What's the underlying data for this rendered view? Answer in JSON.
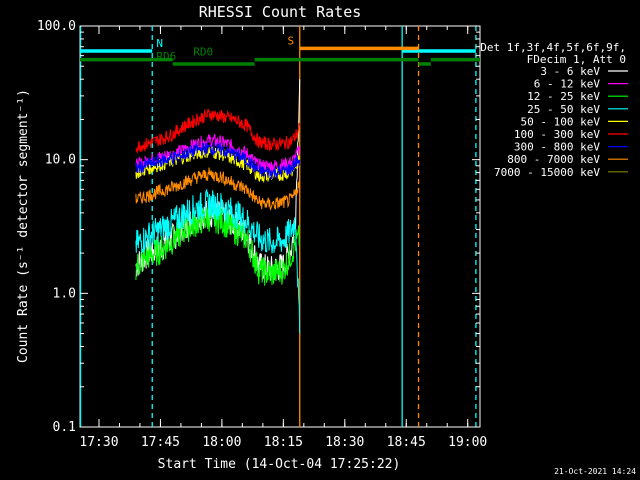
{
  "chart_data": {
    "type": "line",
    "title": "RHESSI Count Rates",
    "xlabel": "Start Time (14-Oct-04 17:25:22)",
    "ylabel": "Count Rate (s⁻¹ detector segment⁻¹)",
    "yscale": "log",
    "ylim": [
      0.1,
      100.0
    ],
    "xlim": [
      "17:25:22",
      "19:03:00"
    ],
    "x_ticks": [
      "17:30",
      "17:45",
      "18:00",
      "18:15",
      "18:30",
      "18:45",
      "19:00"
    ],
    "y_ticks": [
      "0.1",
      "1.0",
      "10.0",
      "100.0"
    ],
    "grid": false,
    "legend_position": "right",
    "legend_header": [
      "Det 1f,3f,4f,5f,6f,9f,",
      "FDecim 1, Att 0"
    ],
    "series": [
      {
        "name": "3 - 6 keV",
        "color": "#ffffff",
        "x": [
          "17:39",
          "17:42",
          "17:45",
          "17:48",
          "17:51",
          "17:54",
          "17:57",
          "18:00",
          "18:03",
          "18:06",
          "18:09",
          "18:12",
          "18:15",
          "18:17",
          "18:18",
          "18:19"
        ],
        "values": [
          1.6,
          2.0,
          2.2,
          2.6,
          3.2,
          3.8,
          4.0,
          3.8,
          3.3,
          2.8,
          1.6,
          1.5,
          1.6,
          2.2,
          4.0,
          40.0
        ]
      },
      {
        "name": "6 - 12 keV",
        "color": "#ff00ff",
        "x": [
          "17:39",
          "17:42",
          "17:45",
          "17:48",
          "17:51",
          "17:54",
          "17:57",
          "18:00",
          "18:03",
          "18:06",
          "18:09",
          "18:12",
          "18:15",
          "18:17",
          "18:18",
          "18:19"
        ],
        "values": [
          9.0,
          9.8,
          10.5,
          11.0,
          12.0,
          13.2,
          14.0,
          13.5,
          12.5,
          11.2,
          9.0,
          9.0,
          9.2,
          9.6,
          10.5,
          12.0
        ]
      },
      {
        "name": "12 - 25 keV",
        "color": "#00ff00",
        "x": [
          "17:39",
          "17:42",
          "17:45",
          "17:48",
          "17:51",
          "17:54",
          "17:57",
          "18:00",
          "18:03",
          "18:06",
          "18:09",
          "18:12",
          "18:15",
          "18:17",
          "18:18",
          "18:19"
        ],
        "values": [
          1.6,
          1.9,
          2.1,
          2.5,
          3.0,
          3.4,
          3.7,
          3.5,
          3.0,
          2.6,
          1.5,
          1.4,
          1.5,
          2.0,
          2.4,
          2.6
        ]
      },
      {
        "name": "25 - 50 keV",
        "color": "#00ffff",
        "x": [
          "17:39",
          "17:42",
          "17:45",
          "17:48",
          "17:51",
          "17:54",
          "17:57",
          "18:00",
          "18:03",
          "18:06",
          "18:09",
          "18:12",
          "18:15",
          "18:17",
          "18:18",
          "18:19"
        ],
        "values": [
          2.3,
          2.7,
          3.0,
          3.4,
          4.0,
          4.4,
          4.7,
          4.5,
          4.0,
          3.5,
          2.6,
          2.4,
          2.5,
          3.0,
          3.6,
          0.5
        ]
      },
      {
        "name": "50 - 100 keV",
        "color": "#ffff00",
        "x": [
          "17:39",
          "17:42",
          "17:45",
          "17:48",
          "17:51",
          "17:54",
          "17:57",
          "18:00",
          "18:03",
          "18:06",
          "18:09",
          "18:12",
          "18:15",
          "18:17",
          "18:18",
          "18:19"
        ],
        "values": [
          8.0,
          8.6,
          9.2,
          9.8,
          10.5,
          11.2,
          11.6,
          11.0,
          10.0,
          9.2,
          7.6,
          7.6,
          7.8,
          8.2,
          9.0,
          10.0
        ]
      },
      {
        "name": "100 - 300 keV",
        "color": "#ff0000",
        "x": [
          "17:39",
          "17:42",
          "17:45",
          "17:48",
          "17:51",
          "17:54",
          "17:57",
          "18:00",
          "18:03",
          "18:06",
          "18:09",
          "18:12",
          "18:15",
          "18:17",
          "18:18",
          "18:19"
        ],
        "values": [
          12.5,
          13.2,
          14.2,
          15.5,
          18.0,
          20.0,
          22.0,
          21.0,
          20.0,
          18.0,
          13.5,
          13.0,
          13.2,
          13.8,
          15.0,
          18.0
        ]
      },
      {
        "name": "300 - 800 keV",
        "color": "#0000ff",
        "x": [
          "17:39",
          "17:42",
          "17:45",
          "17:48",
          "17:51",
          "17:54",
          "17:57",
          "18:00",
          "18:03",
          "18:06",
          "18:09",
          "18:12",
          "18:15",
          "18:17",
          "18:18",
          "18:19"
        ],
        "values": [
          8.5,
          9.2,
          9.8,
          10.3,
          11.0,
          11.8,
          12.2,
          11.8,
          11.0,
          10.0,
          8.2,
          8.0,
          8.2,
          8.6,
          9.5,
          10.0
        ]
      },
      {
        "name": "800 - 7000 keV",
        "color": "#ff8c00",
        "x": [
          "17:39",
          "17:42",
          "17:45",
          "17:48",
          "17:51",
          "17:54",
          "17:57",
          "18:00",
          "18:03",
          "18:06",
          "18:09",
          "18:12",
          "18:15",
          "18:17",
          "18:18",
          "18:19"
        ],
        "values": [
          5.0,
          5.4,
          5.8,
          6.2,
          6.8,
          7.4,
          7.8,
          7.4,
          6.6,
          6.0,
          4.8,
          4.6,
          4.8,
          5.0,
          5.6,
          7.0
        ]
      },
      {
        "name": "7000 - 15000 keV",
        "color": "#808000",
        "x": [],
        "values": []
      }
    ],
    "annotations": {
      "vlines": [
        {
          "x": "17:25:30",
          "color": "#00ffff",
          "style": "solid"
        },
        {
          "x": "17:43",
          "color": "#00ffff",
          "style": "dashed"
        },
        {
          "x": "18:19",
          "color": "#ff8c00",
          "style": "solid"
        },
        {
          "x": "18:44",
          "color": "#00ffff",
          "style": "solid"
        },
        {
          "x": "18:48",
          "color": "#ff8c00",
          "style": "dashed"
        },
        {
          "x": "19:02",
          "color": "#00ffff",
          "style": "dashed"
        }
      ],
      "bars": [
        {
          "label": "N",
          "color": "#00ffff",
          "y": 65,
          "segments": [
            [
              "17:25:22",
              "17:43"
            ],
            [
              "18:44",
              "19:02"
            ]
          ],
          "label_at": "17:44"
        },
        {
          "label": "S",
          "color": "#ff8c00",
          "y": 68,
          "segments": [
            [
              "18:19",
              "18:48"
            ]
          ],
          "label_at": "18:16"
        },
        {
          "label": "RD0",
          "color": "#008000",
          "y": 56,
          "segments": [
            [
              "17:25:22",
              "17:48"
            ],
            [
              "18:08",
              "18:48"
            ],
            [
              "18:51",
              "19:03"
            ]
          ],
          "label_at": "17:53"
        },
        {
          "label": "RD6",
          "color": "#008000",
          "y": 52,
          "segments": [
            [
              "17:48",
              "18:08"
            ],
            [
              "18:48",
              "18:51"
            ]
          ],
          "label_at": "17:44"
        }
      ]
    }
  },
  "footer": {
    "timestamp": "21-Oct-2021 14:24"
  }
}
